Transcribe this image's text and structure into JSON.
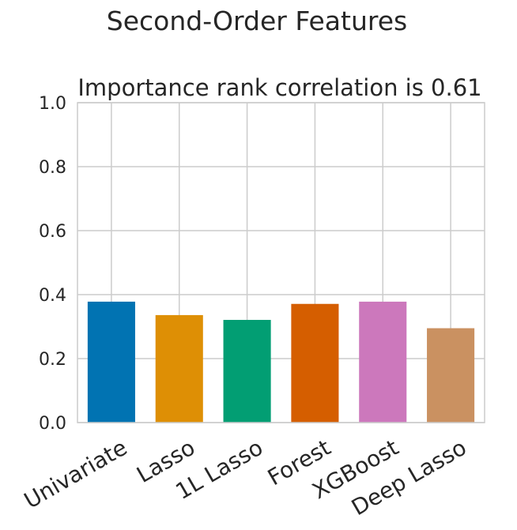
{
  "chart_data": {
    "type": "bar",
    "suptitle": "Second-Order Features",
    "title": "Importance rank correlation is 0.61",
    "xlabel": "",
    "ylabel": "",
    "categories": [
      "Univariate",
      "Lasso",
      "1L Lasso",
      "Forest",
      "XGBoost",
      "Deep Lasso"
    ],
    "values": [
      0.378,
      0.336,
      0.321,
      0.371,
      0.378,
      0.295
    ],
    "colors": [
      "#0173b2",
      "#de8f05",
      "#029e73",
      "#d55e00",
      "#cc78bc",
      "#ca9161"
    ],
    "ylim": [
      0,
      1.0
    ],
    "yticks": [
      "0.0",
      "0.2",
      "0.4",
      "0.6",
      "0.8",
      "1.0"
    ],
    "grid": true,
    "legend": "none"
  }
}
